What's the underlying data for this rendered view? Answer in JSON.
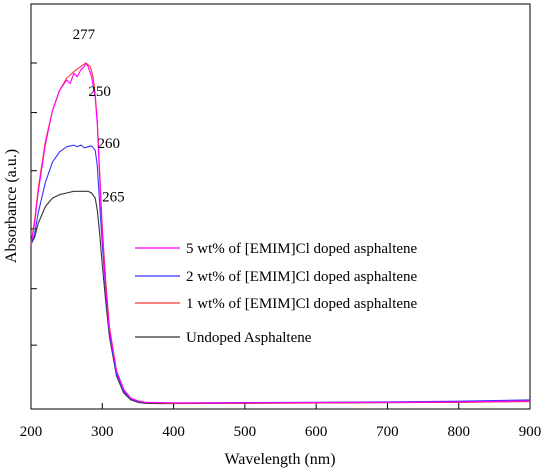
{
  "chart_data": {
    "type": "line",
    "title": "",
    "xlabel": "Wavelength (nm)",
    "ylabel": "Absorbance (a.u.)",
    "xlim": [
      200,
      900
    ],
    "ylim": [
      0,
      1.0
    ],
    "x_ticks": [
      "200",
      "300",
      "400",
      "500",
      "600",
      "700",
      "800",
      "900"
    ],
    "y_tick_labels_shown": false,
    "grid": false,
    "legend_position": "center-right",
    "series": [
      {
        "name": "5 wt% of [EMIM]Cl doped asphaltene",
        "color": "#ff00ff",
        "x": [
          200,
          205,
          210,
          220,
          230,
          240,
          250,
          255,
          260,
          265,
          270,
          275,
          277,
          280,
          285,
          290,
          293,
          296,
          300,
          305,
          310,
          320,
          330,
          340,
          350,
          360,
          380,
          400,
          500,
          600,
          700,
          800,
          900
        ],
        "y": [
          0.47,
          0.53,
          0.62,
          0.76,
          0.86,
          0.92,
          0.95,
          0.94,
          0.97,
          0.96,
          0.98,
          0.99,
          1.0,
          0.99,
          0.96,
          0.9,
          0.82,
          0.68,
          0.5,
          0.34,
          0.22,
          0.1,
          0.045,
          0.02,
          0.012,
          0.008,
          0.007,
          0.006,
          0.006,
          0.007,
          0.008,
          0.009,
          0.012
        ]
      },
      {
        "name": "2 wt% of [EMIM]Cl doped asphaltene",
        "color": "#3333ff",
        "x": [
          200,
          205,
          210,
          220,
          230,
          240,
          250,
          260,
          265,
          270,
          275,
          280,
          285,
          290,
          293,
          296,
          300,
          305,
          310,
          320,
          330,
          340,
          350,
          360,
          380,
          400,
          500,
          600,
          700,
          800,
          900
        ],
        "y": [
          0.47,
          0.5,
          0.56,
          0.65,
          0.71,
          0.74,
          0.755,
          0.76,
          0.755,
          0.76,
          0.752,
          0.755,
          0.758,
          0.745,
          0.7,
          0.6,
          0.47,
          0.33,
          0.21,
          0.09,
          0.04,
          0.018,
          0.01,
          0.007,
          0.006,
          0.006,
          0.007,
          0.008,
          0.009,
          0.011,
          0.015
        ]
      },
      {
        "name": "1 wt% of [EMIM]Cl doped asphaltene",
        "color": "#ff3333",
        "x": [
          200,
          205,
          210,
          220,
          230,
          240,
          250,
          260,
          270,
          277,
          280,
          283,
          287,
          290,
          293,
          296,
          300,
          305,
          310,
          320,
          330,
          340,
          350,
          360,
          380,
          400,
          500,
          600,
          700,
          800,
          900
        ],
        "y": [
          0.47,
          0.54,
          0.63,
          0.77,
          0.86,
          0.92,
          0.955,
          0.975,
          0.99,
          1.0,
          0.995,
          0.99,
          0.96,
          0.91,
          0.83,
          0.7,
          0.52,
          0.36,
          0.23,
          0.1,
          0.045,
          0.02,
          0.012,
          0.008,
          0.006,
          0.005,
          0.005,
          0.006,
          0.007,
          0.008,
          0.01
        ]
      },
      {
        "name": "Undoped Asphaltene",
        "color": "#333333",
        "x": [
          200,
          205,
          210,
          220,
          230,
          240,
          250,
          260,
          265,
          270,
          280,
          285,
          290,
          293,
          296,
          300,
          305,
          310,
          320,
          330,
          340,
          350,
          360,
          380,
          400,
          500,
          600,
          700,
          800,
          900
        ],
        "y": [
          0.47,
          0.49,
          0.53,
          0.58,
          0.605,
          0.615,
          0.62,
          0.625,
          0.625,
          0.625,
          0.625,
          0.62,
          0.605,
          0.57,
          0.51,
          0.41,
          0.3,
          0.2,
          0.085,
          0.035,
          0.015,
          0.008,
          0.005,
          0.004,
          0.004,
          0.005,
          0.006,
          0.007,
          0.008,
          0.011
        ]
      }
    ],
    "annotations": [
      {
        "text": "277",
        "x": 277,
        "y": 1.0
      },
      {
        "text": "250",
        "x": 250,
        "y": 0.95
      },
      {
        "text": "260",
        "x": 260,
        "y": 0.76
      },
      {
        "text": "265",
        "x": 265,
        "y": 0.625
      }
    ]
  }
}
